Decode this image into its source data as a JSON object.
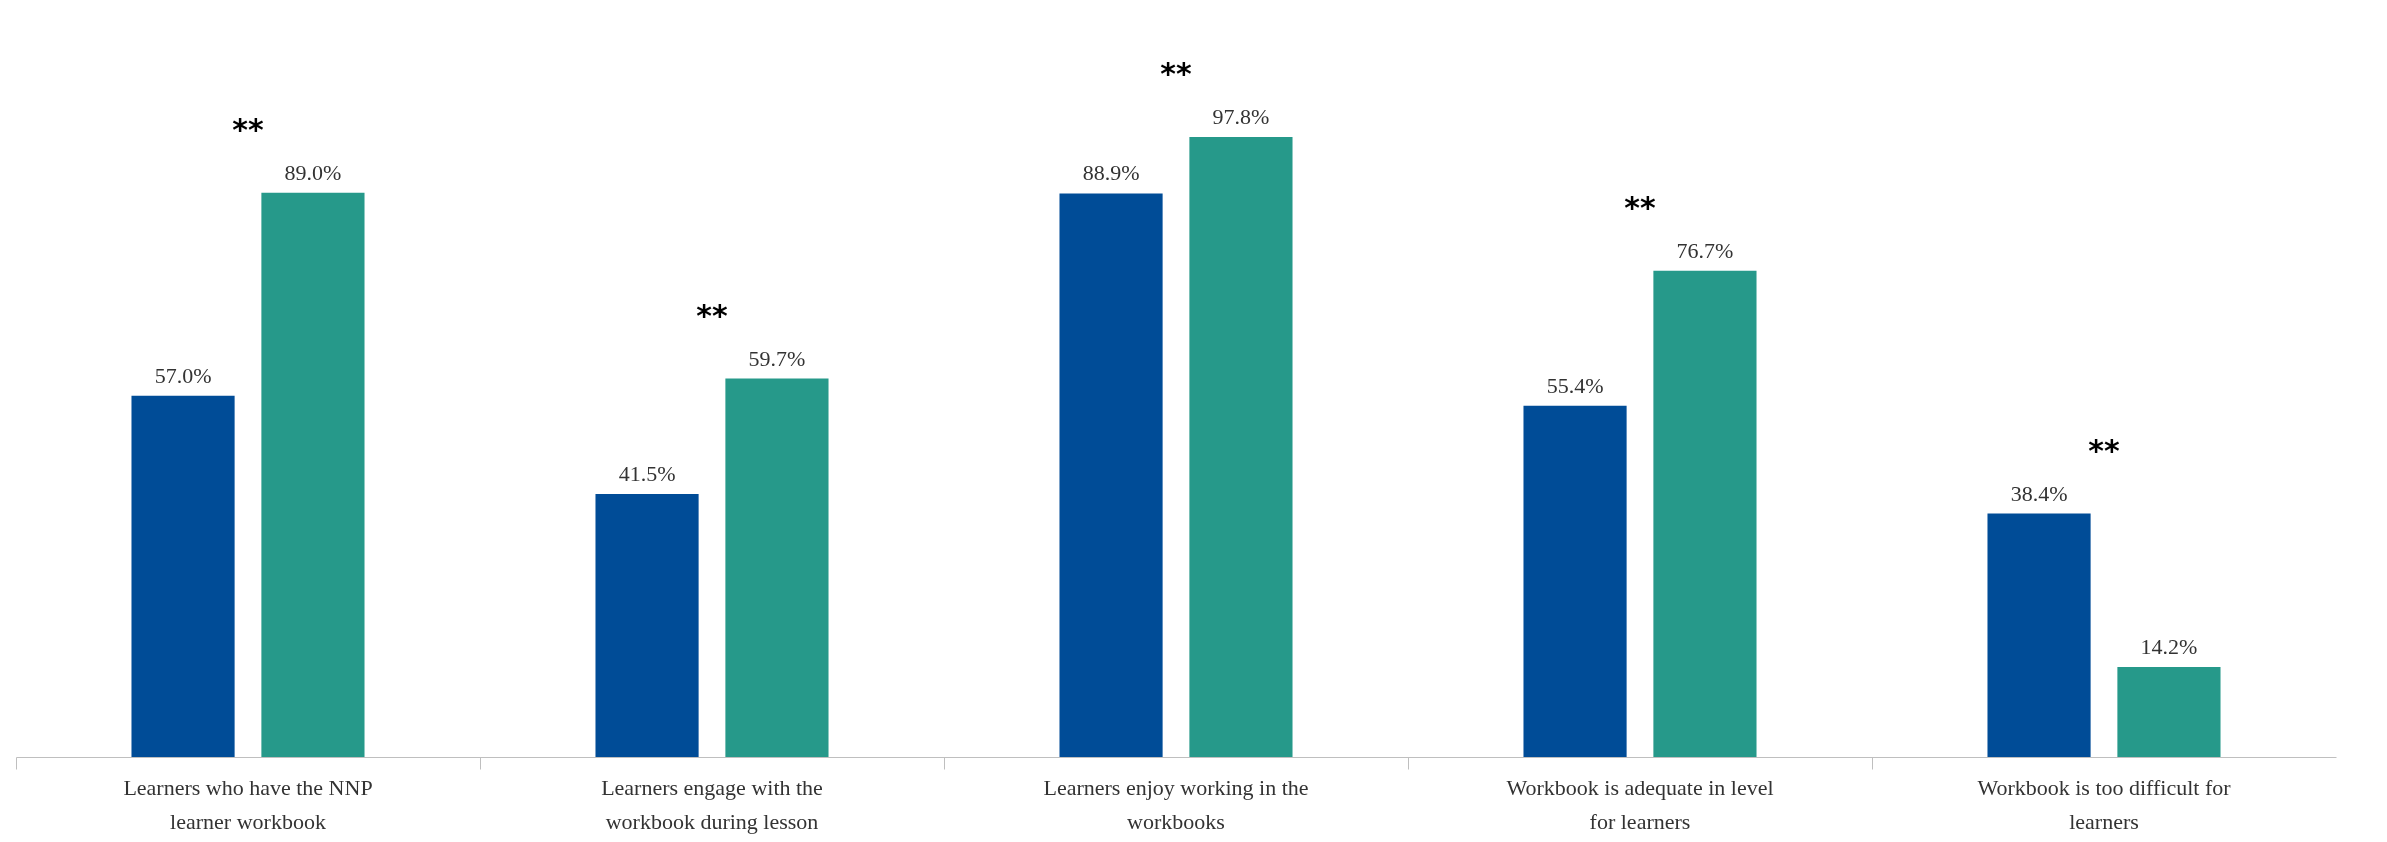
{
  "chart_data": {
    "type": "bar",
    "categories": [
      "Learners who have the NNP learner workbook",
      "Learners engage with the workbook during lesson",
      "Learners enjoy working in the workbooks",
      "Workbook is adequate in level for learners",
      "Workbook is too difficult for learners"
    ],
    "series": [
      {
        "color": "#004c97",
        "values": [
          57.0,
          41.5,
          88.9,
          55.4,
          38.4
        ],
        "value_labels": [
          "57.0%",
          "41.5%",
          "88.9%",
          "55.4%",
          "38.4%"
        ]
      },
      {
        "color": "#26998a",
        "values": [
          89.0,
          59.7,
          97.8,
          76.7,
          14.2
        ],
        "value_labels": [
          "89.0%",
          "59.7%",
          "97.8%",
          "76.7%",
          "14.2%"
        ]
      }
    ],
    "annotations": [
      "**",
      "**",
      "**",
      "**",
      "**"
    ]
  }
}
